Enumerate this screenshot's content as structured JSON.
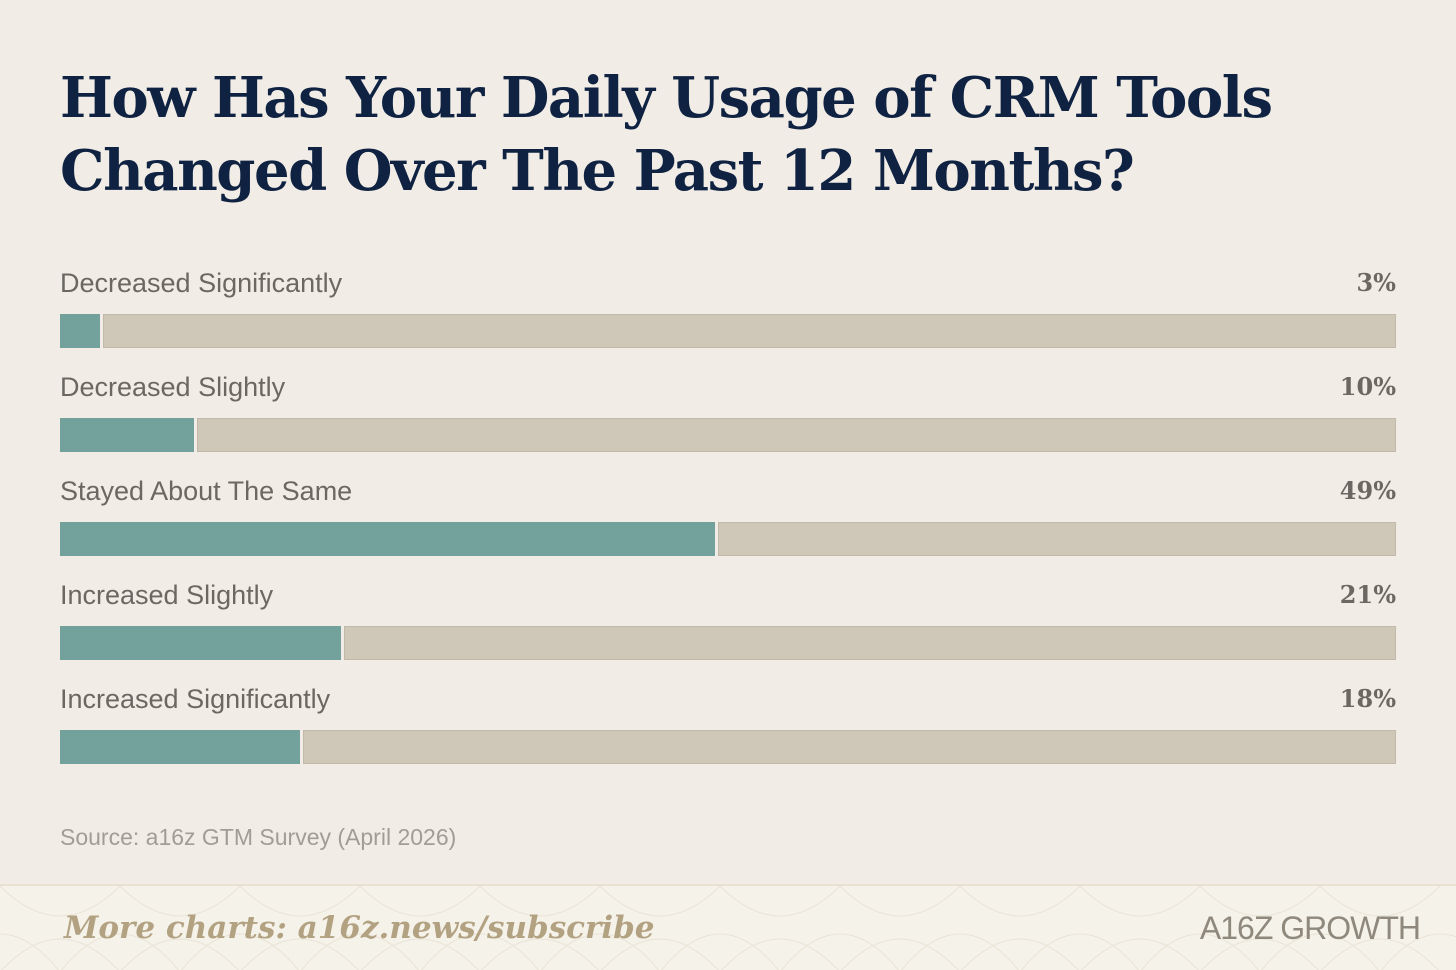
{
  "title": "How Has Your Daily Usage of CRM Tools Changed Over The Past 12 Months?",
  "chart_data": {
    "type": "bar",
    "orientation": "horizontal",
    "title": "How Has Your Daily Usage of CRM Tools Changed Over The Past 12 Months?",
    "categories": [
      "Decreased Significantly",
      "Decreased Slightly",
      "Stayed About The Same",
      "Increased Slightly",
      "Increased Significantly"
    ],
    "values": [
      3,
      10,
      49,
      21,
      18
    ],
    "value_labels": [
      "3%",
      "10%",
      "49%",
      "21%",
      "18%"
    ],
    "unit": "%",
    "xlim": [
      0,
      100
    ],
    "grid": false,
    "legend": "none"
  },
  "colors": {
    "fill": "#73a29c",
    "track": "#cfc7b8",
    "title": "#0f2242",
    "background": "#f1ede6"
  },
  "source": "Source: a16z GTM Survey (April 2026)",
  "footer": {
    "cta": "More charts: a16z.news/subscribe",
    "logo": "A16Z GROWTH"
  }
}
